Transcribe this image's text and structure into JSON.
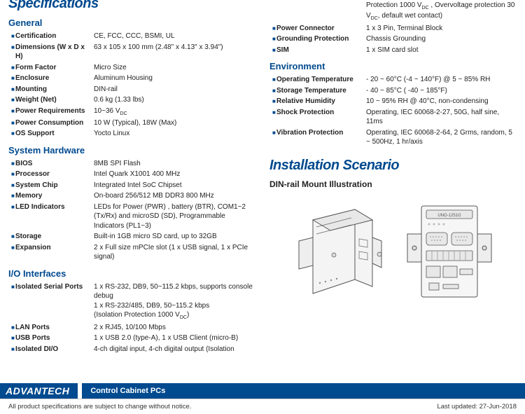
{
  "headings": {
    "specifications": "Specifications",
    "installation": "Installation Scenario",
    "illus_title": "DIN-rail Mount Illustration"
  },
  "sections": {
    "general": "General",
    "system_hw": "System Hardware",
    "io": "I/O Interfaces",
    "environment": "Environment"
  },
  "general": [
    {
      "k": "Certification",
      "v": "CE, FCC, CCC, BSMI, UL"
    },
    {
      "k": "Dimensions (W x D x H)",
      "v": "63 x 105 x 100 mm (2.48\" x 4.13\" x 3.94\")"
    },
    {
      "k": "Form Factor",
      "v": "Micro Size"
    },
    {
      "k": "Enclosure",
      "v": "Aluminum Housing"
    },
    {
      "k": "Mounting",
      "v": "DIN-rail"
    },
    {
      "k": "Weight (Net)",
      "v": "0.6 kg (1.33 lbs)"
    },
    {
      "k": "Power Requirements",
      "v": "10~36 V",
      "sub": "DC"
    },
    {
      "k": "Power Consumption",
      "v": "10 W (Typical), 18W (Max)"
    },
    {
      "k": "OS Support",
      "v": "Yocto Linux"
    }
  ],
  "system_hw": [
    {
      "k": "BIOS",
      "v": "8MB SPI Flash"
    },
    {
      "k": "Processor",
      "v": "Intel Quark X1001 400 MHz"
    },
    {
      "k": "System Chip",
      "v": "Integrated Intel SoC Chipset"
    },
    {
      "k": "Memory",
      "v": "On-board 256/512 MB DDR3 800 MHz"
    },
    {
      "k": "LED Indicators",
      "v": "LEDs for Power (PWR) , battery (BTR), COM1~2 (Tx/Rx) and microSD (SD), Programmable Indicators (PL1~3)"
    },
    {
      "k": "Storage",
      "v": "Built-in 1GB micro SD card, up to 32GB"
    },
    {
      "k": "Expansion",
      "v": "2 x Full size mPCIe slot (1 x USB signal, 1 x PCIe signal)"
    }
  ],
  "io": [
    {
      "k": "Isolated Serial Ports",
      "v": "1 x RS-232, DB9, 50~115.2 kbps, supports console debug\n1 x RS-232/485, DB9, 50~115.2 kbps\n(Isolation Protection 1000 V",
      "sub": "DC",
      "tail": ")"
    },
    {
      "k": "LAN Ports",
      "v": "2 x RJ45, 10/100 Mbps"
    },
    {
      "k": "USB Ports",
      "v": "1 x USB 2.0 (type-A), 1 x USB Client (micro-B)"
    },
    {
      "k": "Isolated DI/O",
      "v": "4-ch digital input, 4-ch digital output (Isolation"
    }
  ],
  "right_top": [
    {
      "k": "",
      "v": "Protection 1000 V",
      "sub": "DC",
      "tail": " , Overvoltage protection 30 V",
      "sub2": "DC",
      "tail2": ", default wet contact)"
    },
    {
      "k": "Power Connector",
      "v": "1 x 3 Pin, Terminal Block"
    },
    {
      "k": "Grounding Protection",
      "v": "Chassis Grounding"
    },
    {
      "k": "SIM",
      "v": "1 x SIM card slot"
    }
  ],
  "environment": [
    {
      "k": "Operating Temperature",
      "v": "- 20 ~ 60°C (-4 ~ 140°F) @ 5 ~ 85% RH"
    },
    {
      "k": "Storage Temperature",
      "v": "- 40 ~ 85°C ( -40 ~ 185°F)"
    },
    {
      "k": "Relative Humidity",
      "v": "10 ~ 95% RH @ 40°C, non-condensing"
    },
    {
      "k": "Shock Protection",
      "v": "Operating, IEC 60068-2-27, 50G, half sine, 11ms"
    },
    {
      "k": "Vibration Protection",
      "v": "Operating, IEC 60068-2-64, 2 Grms, random, 5 ~ 500Hz, 1 hr/axis"
    }
  ],
  "footer": {
    "brand": "ADVANTECH",
    "category": "Control Cabinet PCs",
    "disclaimer": "All product specifications are subject to change without notice.",
    "updated": "Last updated: 27-Jun-2018"
  },
  "style": {
    "accent": "#004a8f",
    "bullet": "■"
  }
}
